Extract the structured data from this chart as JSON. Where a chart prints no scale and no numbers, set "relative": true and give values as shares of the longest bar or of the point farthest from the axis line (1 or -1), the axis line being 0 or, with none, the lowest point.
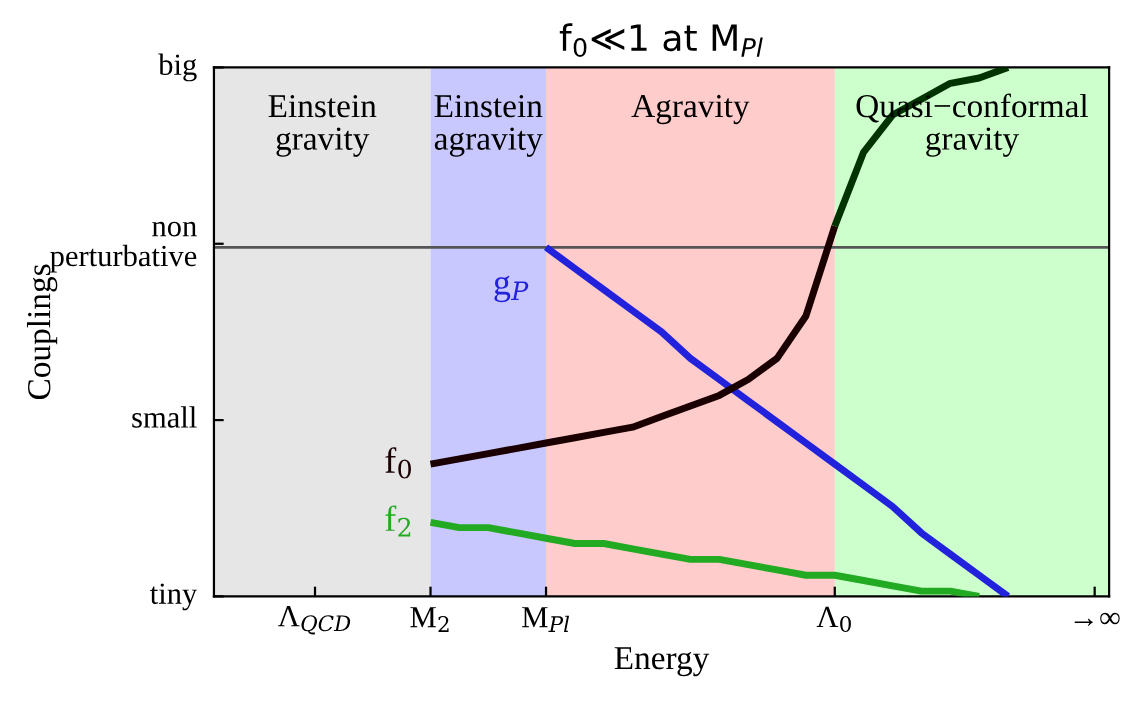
{
  "chart_data": {
    "type": "line",
    "title": "f$_{0}$≪1 at M$_{Pl}$",
    "xlabel": "Energy",
    "ylabel": "Couplings",
    "relative": true,
    "categories": [
      null,
      null,
      null,
      "Λ$_{QCD}$",
      null,
      null,
      null,
      "M$_{2}$",
      null,
      null,
      null,
      "M$_{Pl}$",
      null,
      null,
      null,
      null,
      null,
      null,
      null,
      null,
      null,
      "Λ$_{0}$",
      null,
      null,
      null,
      null,
      null,
      null,
      null,
      null,
      "→∞"
    ],
    "grid": false,
    "marker": "none",
    "line_style": "solid",
    "bands": [
      {
        "axis": "x",
        "from": "M$_{2}$",
        "to": "M$_{Pl}$",
        "label": "Einstein\nagravity",
        "color": "#c8c8ff"
      },
      {
        "axis": "x",
        "from": "M$_{Pl}$",
        "to": "Λ$_{0}$",
        "label": "Agravity",
        "color": "#ffcccc"
      }
    ],
    "ref_lines": [
      {
        "axis": "y",
        "value": 0.66,
        "color": "#555555"
      }
    ],
    "series": [
      {
        "name": "g$_{P}$",
        "color": "#2222dd",
        "values": [
          null,
          null,
          null,
          null,
          null,
          null,
          null,
          null,
          null,
          null,
          null,
          0.66,
          0.62,
          0.58,
          0.54,
          0.5,
          0.45,
          0.41,
          0.37,
          0.33,
          0.29,
          0.25,
          0.21,
          0.17,
          0.12,
          0.08,
          0.04,
          0,
          null,
          null,
          null
        ]
      },
      {
        "name": "f$_{0}$",
        "color": "#1a0000",
        "values": [
          null,
          null,
          null,
          null,
          null,
          null,
          null,
          0.25,
          0.26,
          0.27,
          0.28,
          0.29,
          0.3,
          0.31,
          0.32,
          0.34,
          0.36,
          0.38,
          0.41,
          0.45,
          0.53,
          0.7,
          null,
          null,
          null,
          null,
          null,
          null,
          null,
          null,
          null
        ]
      },
      {
        "color": "#003300",
        "values": [
          null,
          null,
          null,
          null,
          null,
          null,
          null,
          null,
          null,
          null,
          null,
          null,
          null,
          null,
          null,
          null,
          null,
          null,
          null,
          null,
          null,
          0.7,
          0.84,
          0.91,
          0.94,
          0.97,
          0.98,
          1.0,
          null,
          null,
          null
        ]
      },
      {
        "name": "f$_{2}$",
        "color": "#22aa22",
        "values": [
          null,
          null,
          null,
          null,
          null,
          null,
          null,
          0.14,
          0.13,
          0.13,
          0.12,
          0.11,
          0.1,
          0.1,
          0.09,
          0.08,
          0.07,
          0.07,
          0.06,
          0.05,
          0.04,
          0.04,
          0.03,
          0.02,
          0.01,
          0.01,
          0,
          null,
          null,
          null,
          null
        ]
      }
    ],
    "annotations": [
      "tiny",
      "small",
      "non\nperturbative",
      "big",
      "Einstein\ngravity",
      "Quasi−conformal\ngravity"
    ]
  }
}
